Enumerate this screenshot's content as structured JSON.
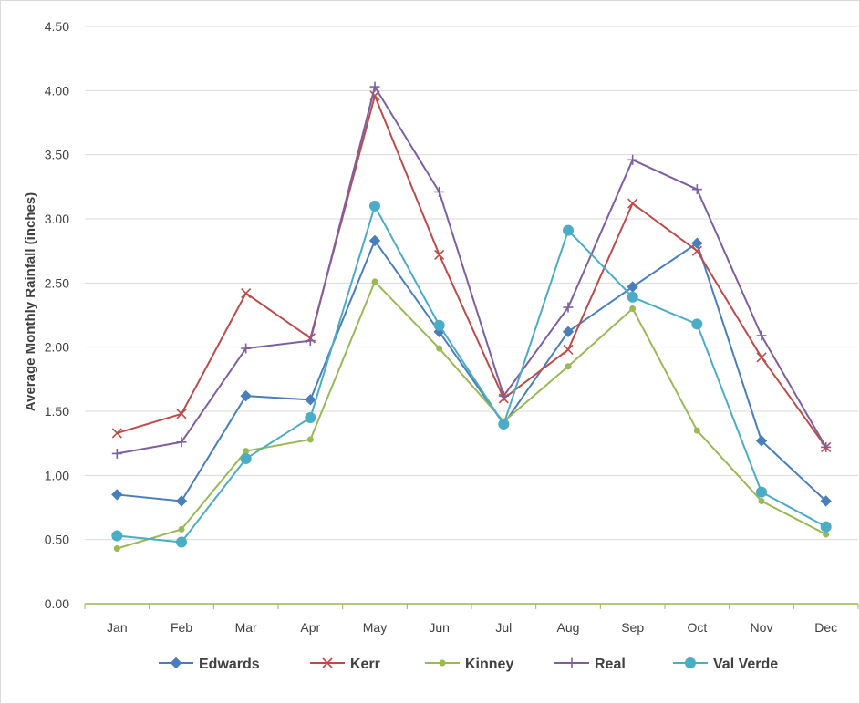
{
  "chart_data": {
    "type": "line",
    "title": "",
    "xlabel": "",
    "ylabel": "Average Monthly Rainfall (inches)",
    "ylim": [
      0,
      4.5
    ],
    "yticks": [
      "0.00",
      "0.50",
      "1.00",
      "1.50",
      "2.00",
      "2.50",
      "3.00",
      "3.50",
      "4.00",
      "4.50"
    ],
    "grid": "horizontal",
    "legend_position": "bottom",
    "categories": [
      "Jan",
      "Feb",
      "Mar",
      "Apr",
      "May",
      "Jun",
      "Jul",
      "Aug",
      "Sep",
      "Oct",
      "Nov",
      "Dec"
    ],
    "series": [
      {
        "name": "Edwards",
        "color": "#4a7ebb",
        "marker": "diamond",
        "values": [
          0.85,
          0.8,
          1.62,
          1.59,
          2.83,
          2.12,
          1.4,
          2.12,
          2.47,
          2.81,
          1.27,
          0.8
        ]
      },
      {
        "name": "Kerr",
        "color": "#be4b48",
        "marker": "x",
        "values": [
          1.33,
          1.48,
          2.42,
          2.07,
          3.96,
          2.72,
          1.6,
          1.98,
          3.12,
          2.75,
          1.92,
          1.22
        ]
      },
      {
        "name": "Kinney",
        "color": "#98b954",
        "marker": "circle-small",
        "values": [
          0.43,
          0.58,
          1.19,
          1.28,
          2.51,
          1.99,
          1.42,
          1.85,
          2.3,
          1.35,
          0.8,
          0.54
        ]
      },
      {
        "name": "Real",
        "color": "#7d5fa0",
        "marker": "plus",
        "values": [
          1.17,
          1.26,
          1.99,
          2.05,
          4.03,
          3.21,
          1.62,
          2.31,
          3.46,
          3.23,
          2.09,
          1.22
        ]
      },
      {
        "name": "Val Verde",
        "color": "#4bacc6",
        "marker": "circle-large",
        "values": [
          0.53,
          0.48,
          1.13,
          1.45,
          3.1,
          2.17,
          1.4,
          2.91,
          2.39,
          2.18,
          0.87,
          0.6
        ]
      }
    ]
  }
}
